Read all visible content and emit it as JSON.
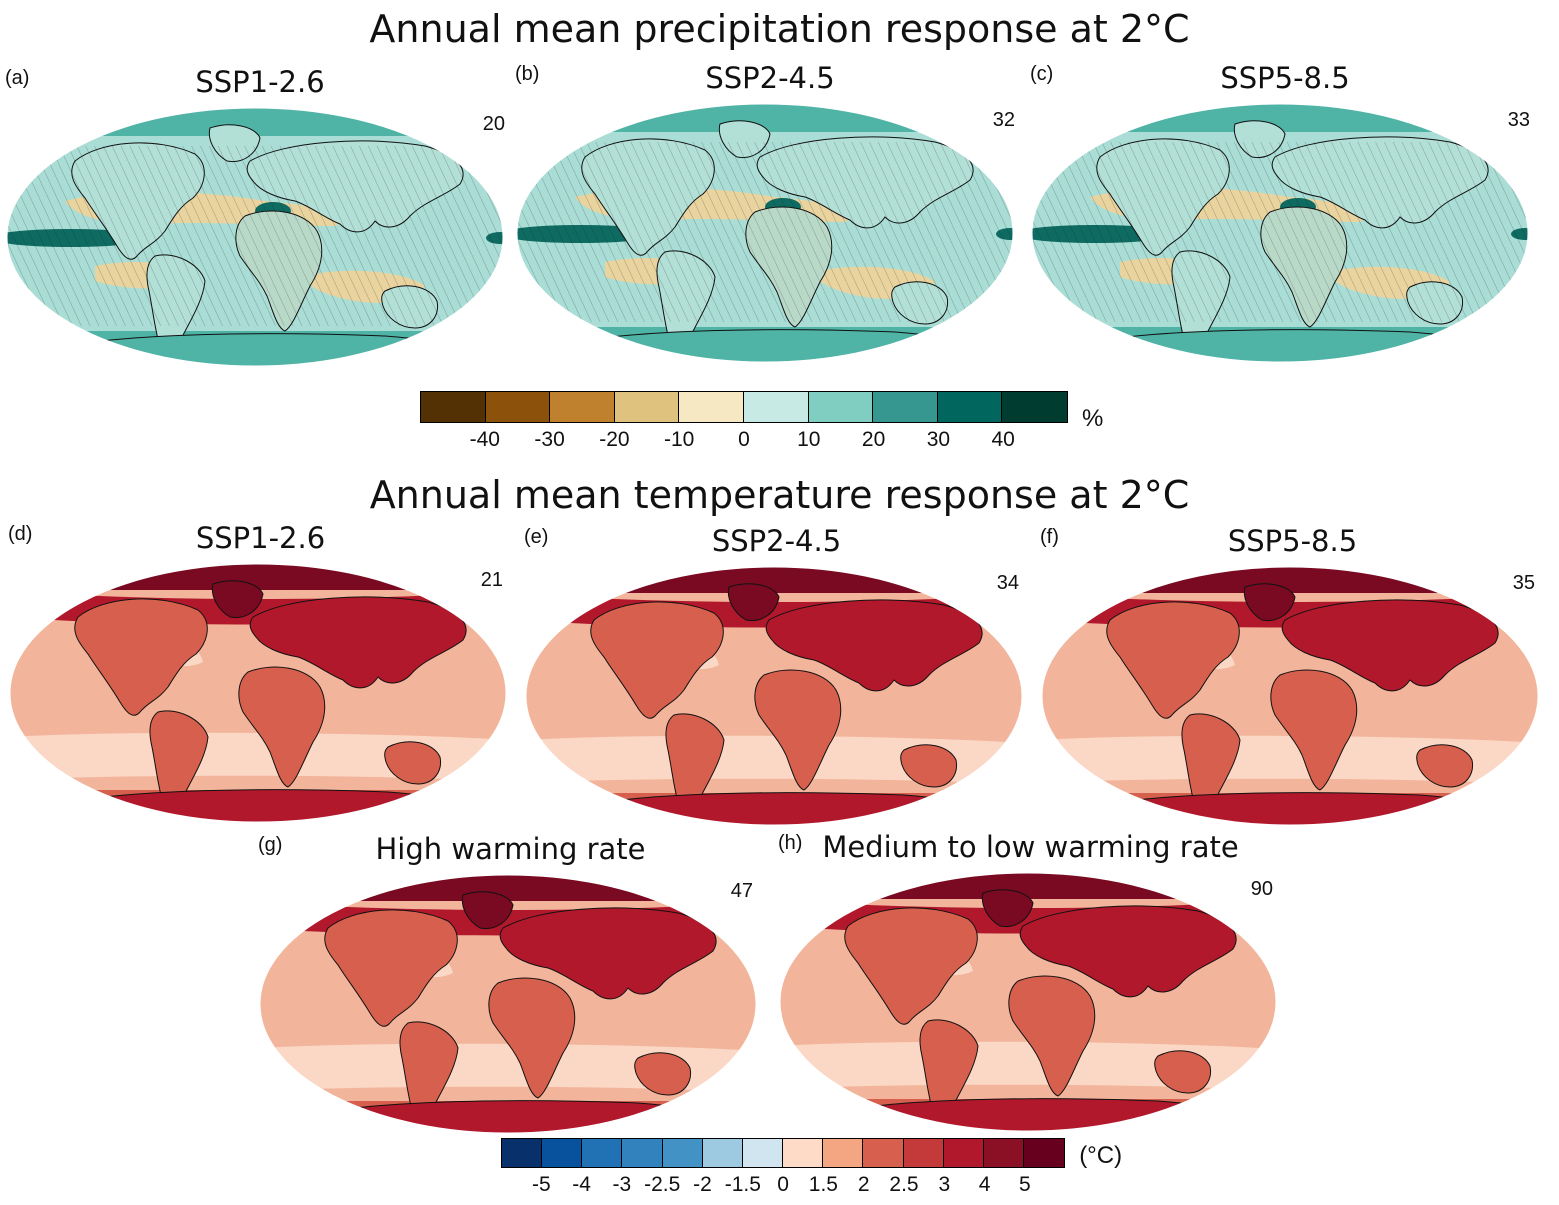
{
  "figure": {
    "precip_title": "Annual mean precipitation response at 2°C",
    "temp_title": "Annual mean temperature response at 2°C"
  },
  "panels": [
    {
      "letter": "(a)",
      "title": "SSP1-2.6",
      "count": "20",
      "kind": "precip"
    },
    {
      "letter": "(b)",
      "title": "SSP2-4.5",
      "count": "32",
      "kind": "precip"
    },
    {
      "letter": "(c)",
      "title": "SSP5-8.5",
      "count": "33",
      "kind": "precip"
    },
    {
      "letter": "(d)",
      "title": "SSP1-2.6",
      "count": "21",
      "kind": "temp"
    },
    {
      "letter": "(e)",
      "title": "SSP2-4.5",
      "count": "34",
      "kind": "temp"
    },
    {
      "letter": "(f)",
      "title": "SSP5-8.5",
      "count": "35",
      "kind": "temp"
    },
    {
      "letter": "(g)",
      "title": "High warming rate",
      "count": "47",
      "kind": "temp"
    },
    {
      "letter": "(h)",
      "title": "Medium to low warming rate",
      "count": "90",
      "kind": "temp"
    }
  ],
  "precip_colorbar": {
    "unit": "%",
    "colors": [
      "#543005",
      "#8c510a",
      "#bf812d",
      "#dfc27d",
      "#f6e8c3",
      "#c7eae5",
      "#80cdc1",
      "#35978f",
      "#01665e",
      "#003c30"
    ],
    "ticks": [
      "-40",
      "-30",
      "-20",
      "-10",
      "0",
      "10",
      "20",
      "30",
      "40"
    ]
  },
  "temp_colorbar": {
    "unit": "(°C)",
    "colors": [
      "#08306b",
      "#08519c",
      "#2171b5",
      "#3182bd",
      "#4292c6",
      "#9ecae1",
      "#d1e5f0",
      "#fddbc7",
      "#f4a582",
      "#d6604d",
      "#c4393a",
      "#b2182b",
      "#8c1025",
      "#67001f"
    ],
    "ticks": [
      "-5",
      "-4",
      "-3",
      "-2.5",
      "-2",
      "-1.5",
      "0",
      "1.5",
      "2",
      "2.5",
      "3",
      "4",
      "5"
    ]
  },
  "map_colors": {
    "precip_ocean": "#a9ddd5",
    "precip_dry": "#e9d49f",
    "precip_wet": "#4fb3a6",
    "precip_very_wet": "#0e6b62",
    "temp_ocean": "#f2b49a",
    "temp_cool": "#fbd7c6",
    "temp_land": "#d6604d",
    "temp_hot": "#b2182b",
    "temp_arctic": "#7a0a22"
  }
}
